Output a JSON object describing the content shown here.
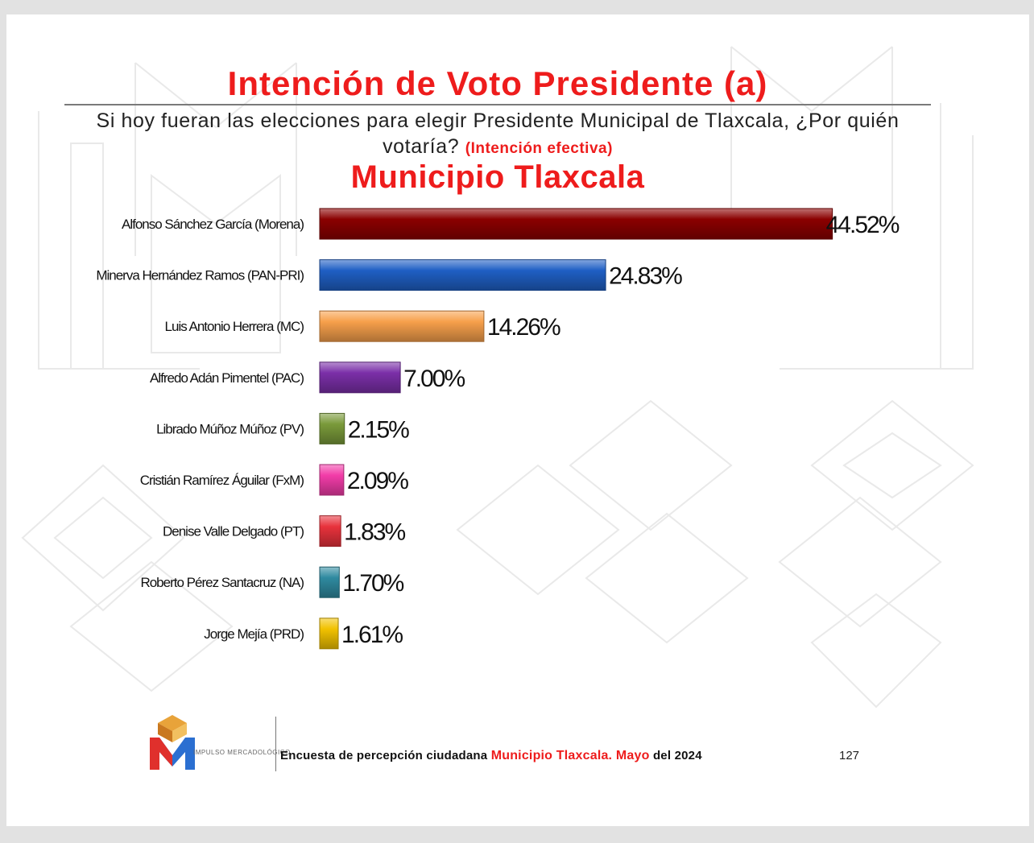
{
  "header": {
    "title": "Intención de Voto Presidente (a)",
    "question": "Si hoy fueran las elecciones para elegir Presidente Municipal de Tlaxcala, ¿Por quién votaría?",
    "question_note": "(Intención efectiva)",
    "subtitle": "Municipio Tlaxcala"
  },
  "chart_data": {
    "type": "bar",
    "orientation": "horizontal",
    "categories": [
      "Alfonso Sánchez García (Morena)",
      "Minerva Hernández Ramos (PAN-PRI)",
      "Luis Antonio Herrera (MC)",
      "Alfredo Adán Pimentel (PAC)",
      "Librado Múñoz Múñoz (PV)",
      "Cristián Ramírez Águilar (FxM)",
      "Denise Valle Delgado (PT)",
      "Roberto Pérez Santacruz (NA)",
      "Jorge Mejía (PRD)"
    ],
    "values": [
      44.52,
      24.83,
      14.26,
      7.0,
      2.15,
      2.09,
      1.83,
      1.7,
      1.61
    ],
    "value_labels": [
      "44.52%",
      "24.83%",
      "14.26%",
      "7.00%",
      "2.15%",
      "2.09%",
      "1.83%",
      "1.70%",
      "1.61%"
    ],
    "colors": [
      "#8b0000",
      "#1f5fc4",
      "#f7a04b",
      "#7b2fa8",
      "#7a9a3a",
      "#f23ca8",
      "#e8323c",
      "#2f8aa0",
      "#f2c200"
    ],
    "grid": false,
    "legend": "none"
  },
  "footer": {
    "logo_text": "IMPULSO MERCADOLÓGICO",
    "text_prefix": "Encuesta de percepción ciudadana",
    "text_highlight": "Municipio Tlaxcala. Mayo",
    "text_suffix": "del 2024",
    "page_number": "127"
  }
}
